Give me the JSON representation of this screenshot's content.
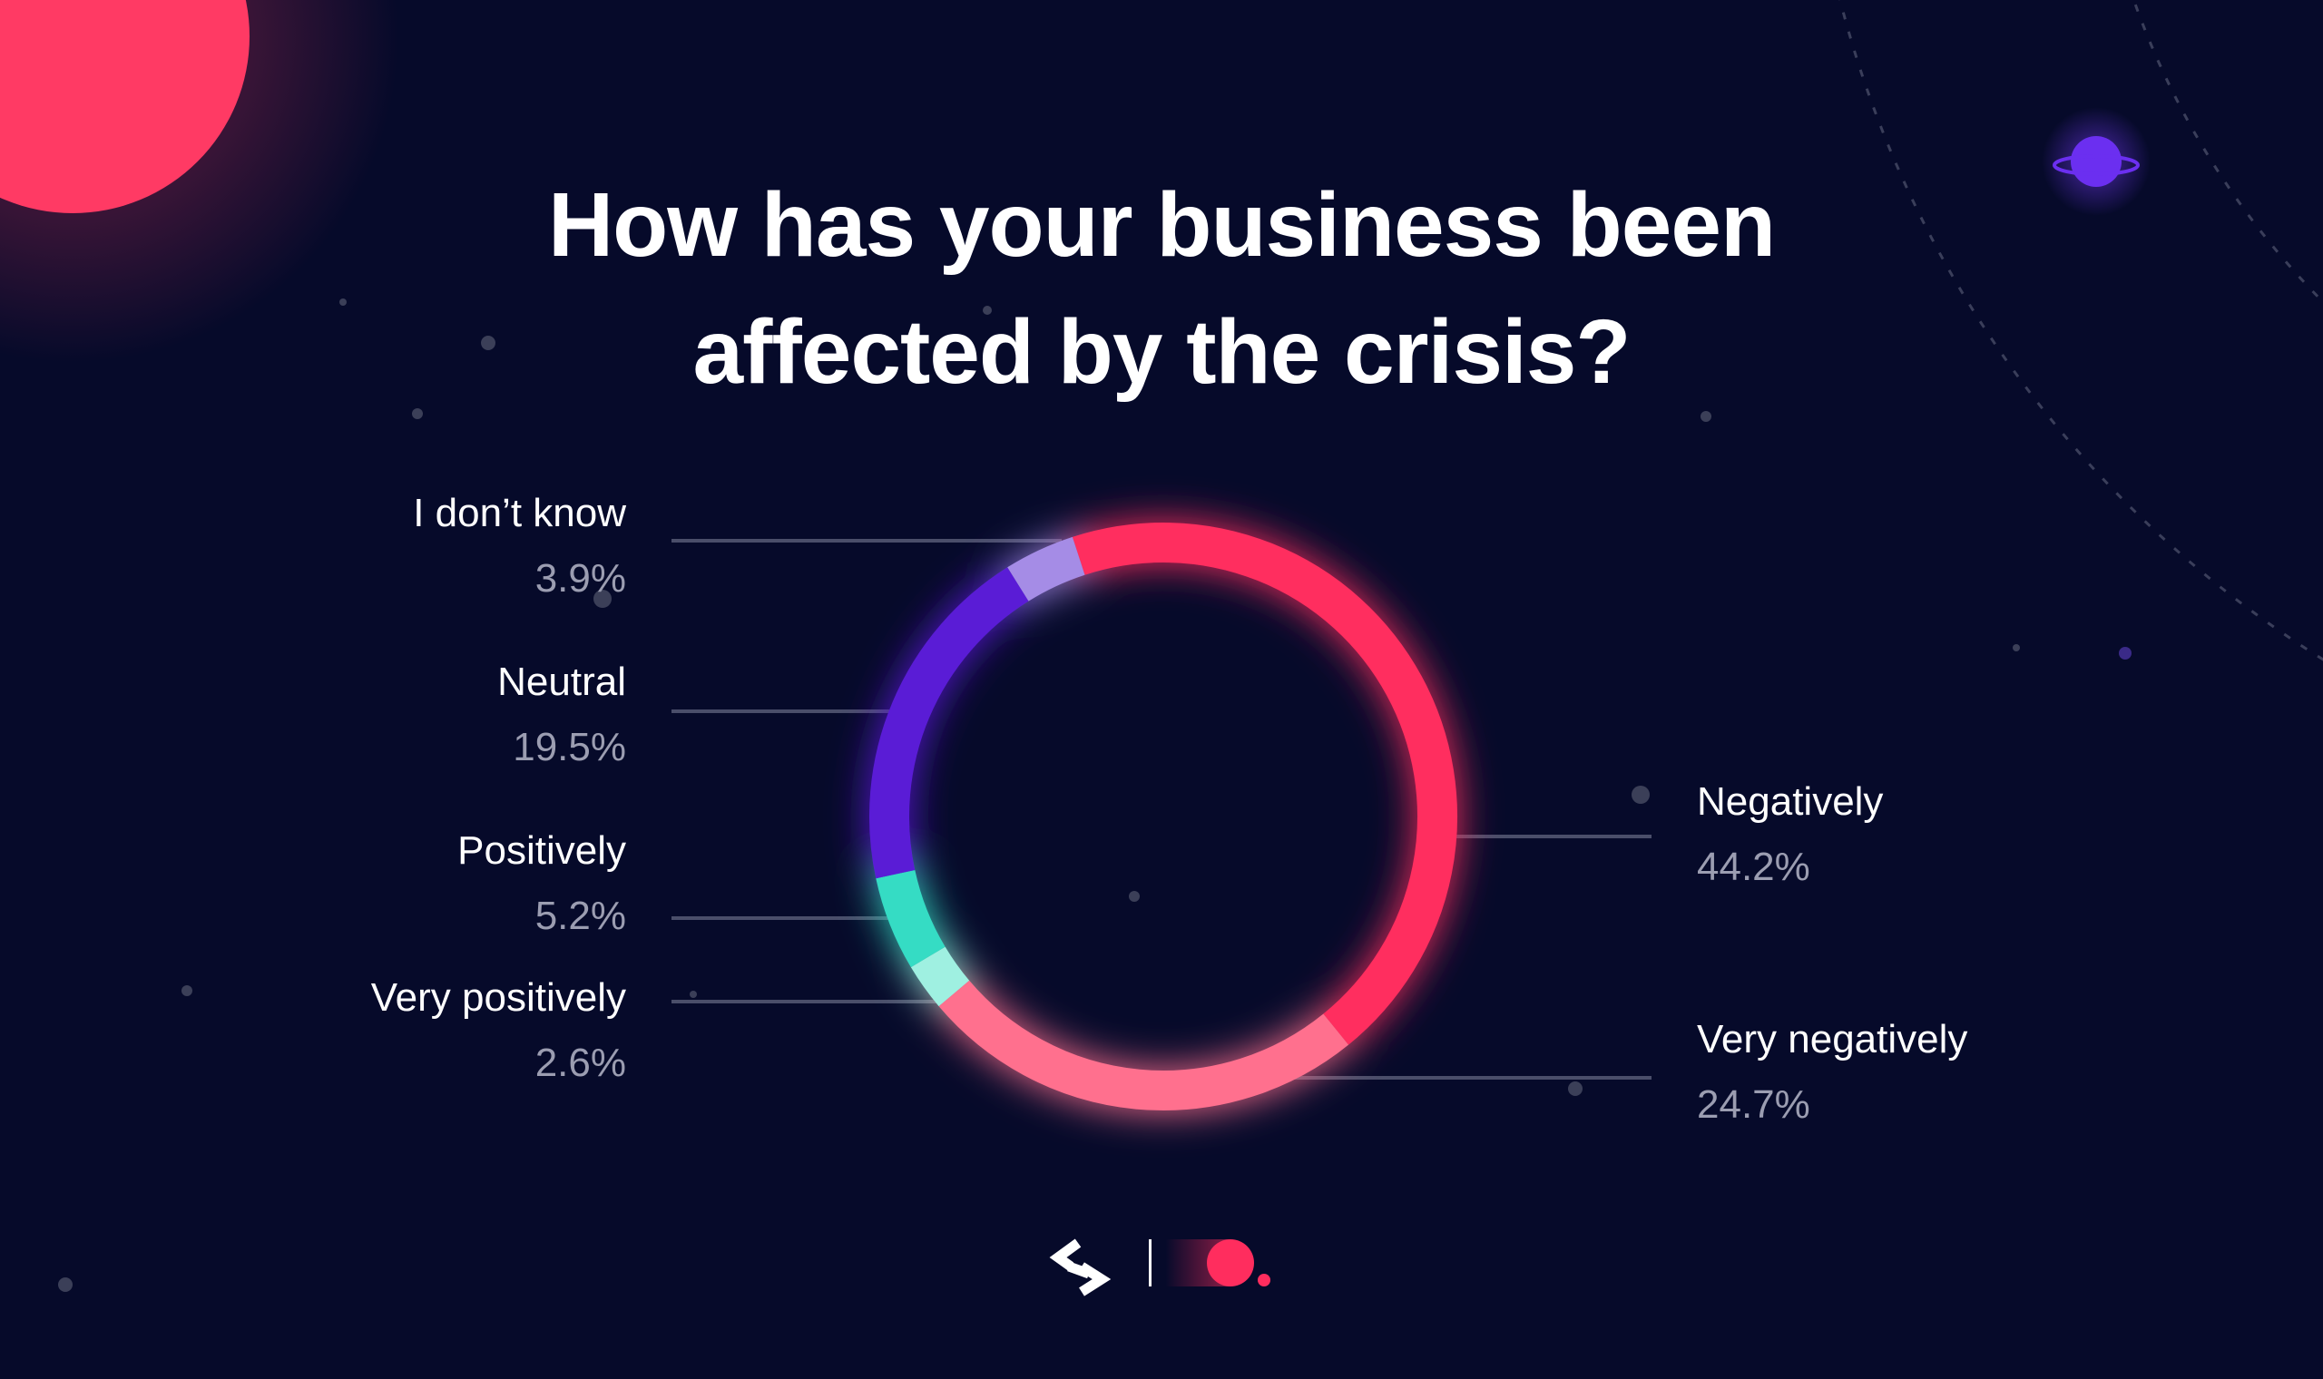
{
  "chart_data": {
    "type": "pie",
    "title": "How has your business been affected by the crisis?",
    "title_lines": [
      "How has your business been",
      "affected by the crisis?"
    ],
    "slices": [
      {
        "label": "Negatively",
        "value": 44.2,
        "value_label": "44.2%",
        "color": "#ff2d5e",
        "side": "right"
      },
      {
        "label": "Very negatively",
        "value": 24.7,
        "value_label": "24.7%",
        "color": "#ff6f8e",
        "side": "right"
      },
      {
        "label": "Very positively",
        "value": 2.6,
        "value_label": "2.6%",
        "color": "#9ff0e1",
        "side": "left"
      },
      {
        "label": "Positively",
        "value": 5.2,
        "value_label": "5.2%",
        "color": "#35dcc4",
        "side": "left"
      },
      {
        "label": "Neutral",
        "value": 19.5,
        "value_label": "19.5%",
        "color": "#5a1fd6",
        "side": "left"
      },
      {
        "label": "I don’t know",
        "value": 3.9,
        "value_label": "3.9%",
        "color": "#a58ce6",
        "side": "left"
      }
    ],
    "donut": true,
    "legend": "callout-labels"
  },
  "colors": {
    "background": "#060a2a",
    "accent": "#ff2d5e",
    "muted_text": "#9b9db1",
    "leader_line": "#4a4e6a"
  },
  "footer": {
    "logos": [
      "brand-arrows-logo",
      "brand-dot-logo"
    ]
  }
}
